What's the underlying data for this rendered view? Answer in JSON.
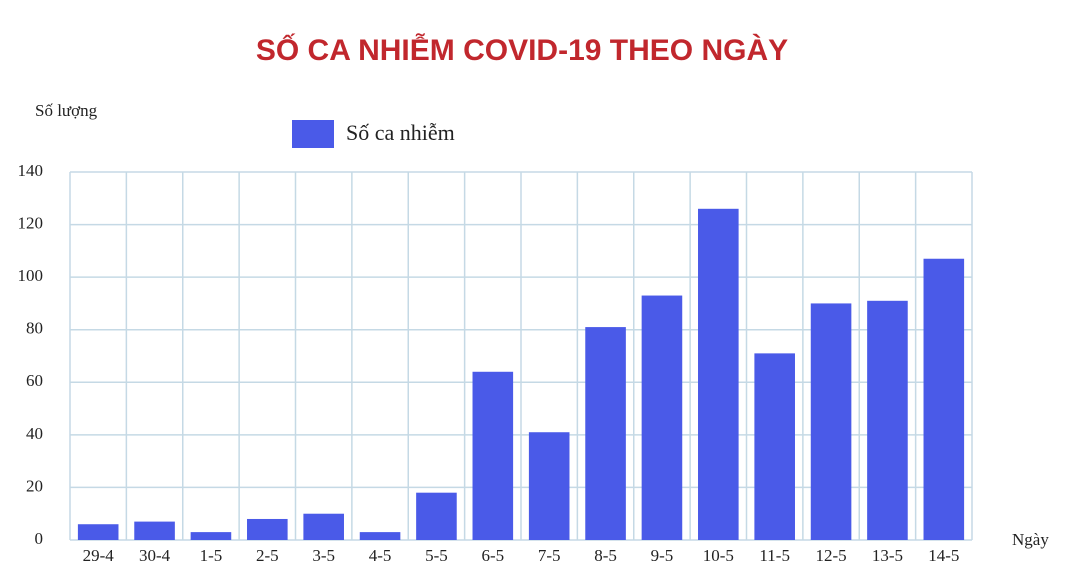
{
  "chart_data": {
    "type": "bar",
    "title": "SỐ CA NHIỄM COVID-19 THEO NGÀY",
    "y_label": "Số lượng",
    "x_label": "Ngày",
    "categories": [
      "29-4",
      "30-4",
      "1-5",
      "2-5",
      "3-5",
      "4-5",
      "5-5",
      "6-5",
      "7-5",
      "8-5",
      "9-5",
      "10-5",
      "11-5",
      "12-5",
      "13-5",
      "14-5"
    ],
    "series": [
      {
        "name": "Số ca nhiễm",
        "color": "#4a5ae8",
        "values": [
          6,
          7,
          3,
          8,
          10,
          3,
          18,
          64,
          41,
          81,
          93,
          126,
          71,
          90,
          91,
          107
        ]
      }
    ],
    "ylim": [
      0,
      140
    ],
    "yticks": [
      0,
      20,
      40,
      60,
      80,
      100,
      120,
      140
    ],
    "grid": true
  }
}
